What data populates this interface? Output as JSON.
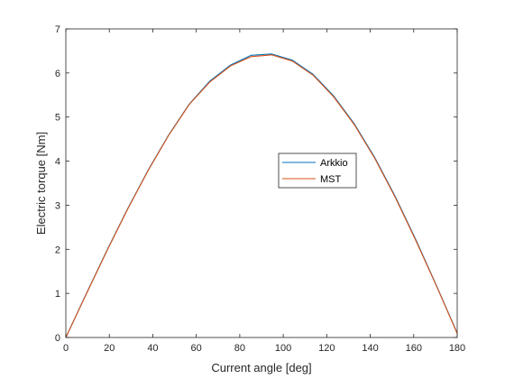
{
  "chart_data": {
    "type": "line",
    "xlabel": "Current angle [deg]",
    "ylabel": "Electric torque [Nm]",
    "xlim": [
      0,
      180
    ],
    "ylim": [
      0,
      7
    ],
    "xticks": [
      0,
      20,
      40,
      60,
      80,
      100,
      120,
      140,
      160,
      180
    ],
    "yticks": [
      0,
      1,
      2,
      3,
      4,
      5,
      6,
      7
    ],
    "grid": false,
    "legend_position": "center-right",
    "x": [
      0,
      9.47,
      18.95,
      28.42,
      37.89,
      47.37,
      56.84,
      66.32,
      75.79,
      85.26,
      94.74,
      104.21,
      113.68,
      123.16,
      132.63,
      142.11,
      151.58,
      161.05,
      170.53,
      180
    ],
    "series": [
      {
        "name": "Arkkio",
        "color": "#0072BD",
        "values": [
          0.0,
          1.0,
          1.98,
          2.92,
          3.8,
          4.6,
          5.3,
          5.82,
          6.18,
          6.4,
          6.43,
          6.29,
          5.97,
          5.48,
          4.85,
          4.08,
          3.19,
          2.21,
          1.17,
          0.1
        ]
      },
      {
        "name": "MST",
        "color": "#D95319",
        "values": [
          0.0,
          0.99,
          1.97,
          2.91,
          3.79,
          4.59,
          5.29,
          5.8,
          6.16,
          6.37,
          6.41,
          6.27,
          5.95,
          5.46,
          4.83,
          4.06,
          3.17,
          2.19,
          1.16,
          0.09
        ]
      }
    ]
  }
}
